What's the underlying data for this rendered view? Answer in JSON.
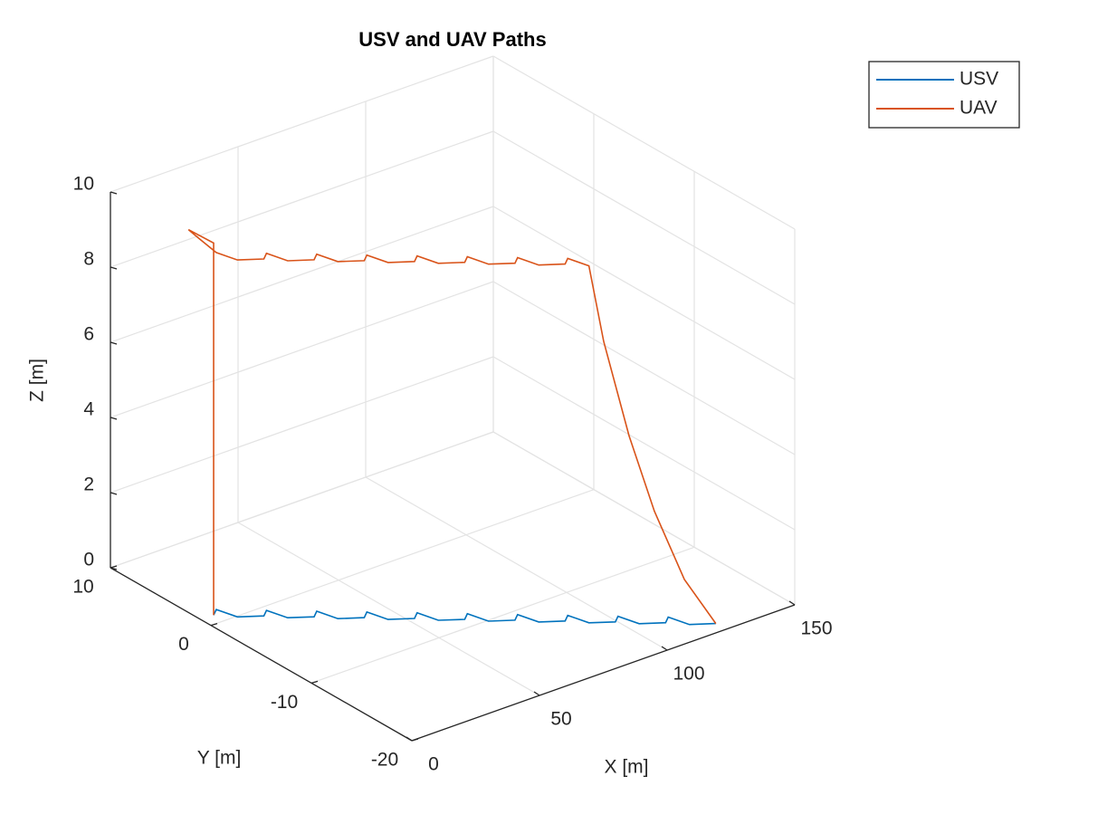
{
  "chart_data": {
    "type": "line3d",
    "title": "USV and UAV Paths",
    "x_label": "X [m]",
    "y_label": "Y [m]",
    "z_label": "Z [m]",
    "xlim": [
      0,
      150
    ],
    "ylim": [
      -20,
      10
    ],
    "zlim": [
      0,
      10
    ],
    "xticks": [
      0,
      50,
      100,
      150
    ],
    "yticks": [
      -20,
      -10,
      0,
      10
    ],
    "zticks": [
      0,
      2,
      4,
      6,
      8,
      10
    ],
    "grid": true,
    "legend": "top-right",
    "series": [
      {
        "name": "USV",
        "color": "#0072BD",
        "x": [
          5,
          8,
          10,
          16.8,
          19.8,
          21.8,
          28.6,
          31.6,
          33.6,
          40.4,
          43.4,
          45.4,
          52.2,
          55.2,
          57.2,
          64,
          67,
          69,
          75.8,
          78.8,
          80.8,
          87.6,
          90.6,
          92.6,
          99.4,
          102.4,
          104.4,
          111.2,
          114.2,
          116.2,
          123
        ],
        "y": [
          1,
          1.5,
          -0.1,
          -1,
          -0.5,
          -2.1,
          -3,
          -2.5,
          -4.1,
          -5,
          -4.5,
          -6.1,
          -7,
          -6.5,
          -8.1,
          -9,
          -8.5,
          -10.1,
          -11,
          -10.5,
          -12.1,
          -13,
          -12.5,
          -14.1,
          -15,
          -14.5,
          -16.1,
          -17,
          -16.5,
          -18.1,
          -19
        ],
        "z": [
          0,
          0,
          0,
          0,
          0,
          0,
          0,
          0,
          0,
          0,
          0,
          0,
          0,
          0,
          0,
          0,
          0,
          0,
          0,
          0,
          0,
          0,
          0,
          0,
          0,
          0,
          0,
          0,
          0,
          0,
          0
        ]
      },
      {
        "name": "UAV",
        "color": "#D95319",
        "x": [
          5,
          5,
          3,
          5,
          8,
          10,
          16.8,
          19.8,
          21.8,
          28.6,
          31.6,
          33.6,
          40.4,
          43.4,
          45.4,
          52.2,
          55.2,
          57.2,
          64,
          67,
          69,
          75.8,
          78.8,
          80.8,
          87.6,
          90.6,
          92.6,
          96,
          102,
          108,
          115,
          123
        ],
        "y": [
          1,
          1,
          3,
          2.5,
          1.5,
          -0.1,
          -1,
          -0.5,
          -2.1,
          -3,
          -2.5,
          -4.1,
          -5,
          -4.5,
          -6.1,
          -7,
          -6.5,
          -8.1,
          -9,
          -8.5,
          -10.1,
          -11,
          -10.5,
          -12.1,
          -13,
          -12.5,
          -14.1,
          -14.7,
          -15.7,
          -16.7,
          -17.9,
          -19
        ],
        "z": [
          0,
          9.9,
          10,
          9.8,
          9.5,
          9.5,
          9.5,
          9.5,
          9.5,
          9.5,
          9.5,
          9.5,
          9.5,
          9.5,
          9.5,
          9.5,
          9.5,
          9.5,
          9.5,
          9.5,
          9.5,
          9.5,
          9.5,
          9.5,
          9.5,
          9.5,
          9.5,
          7.5,
          5,
          3,
          1.2,
          0
        ]
      }
    ]
  }
}
